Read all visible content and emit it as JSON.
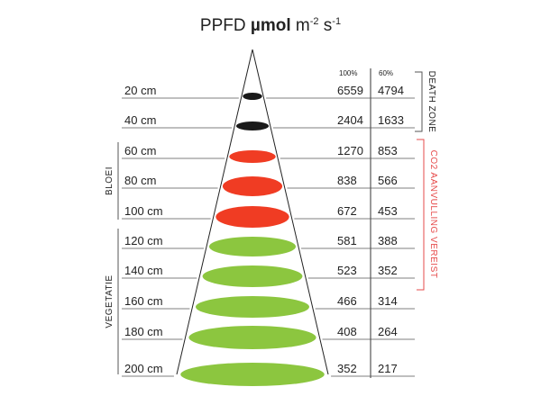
{
  "title": {
    "prefix": "PPFD ",
    "unit_bold": "µmol",
    "rest": " m",
    "exp1": "-2",
    "s": " s",
    "exp2": "-1"
  },
  "columns": [
    "100%",
    "60%"
  ],
  "rows": [
    {
      "distance": "20 cm",
      "v100": "6559",
      "v60": "4794",
      "zone": "death"
    },
    {
      "distance": "40 cm",
      "v100": "2404",
      "v60": "1633",
      "zone": "death"
    },
    {
      "distance": "60 cm",
      "v100": "1270",
      "v60": "853",
      "zone": "bloei"
    },
    {
      "distance": "80 cm",
      "v100": "838",
      "v60": "566",
      "zone": "bloei"
    },
    {
      "distance": "100 cm",
      "v100": "672",
      "v60": "453",
      "zone": "bloei"
    },
    {
      "distance": "120 cm",
      "v100": "581",
      "v60": "388",
      "zone": "vegetatie"
    },
    {
      "distance": "140 cm",
      "v100": "523",
      "v60": "352",
      "zone": "vegetatie"
    },
    {
      "distance": "160 cm",
      "v100": "466",
      "v60": "314",
      "zone": "vegetatie"
    },
    {
      "distance": "180 cm",
      "v100": "408",
      "v60": "264",
      "zone": "vegetatie"
    },
    {
      "distance": "200 cm",
      "v100": "352",
      "v60": "217",
      "zone": "vegetatie"
    }
  ],
  "labels": {
    "bloei": "BLOEI",
    "vegetatie": "VEGETATIE",
    "death_zone": "DEATH ZONE",
    "co2": "CO2 AANVULLING VEREIST"
  },
  "colors": {
    "death": "#1a1a1a",
    "bloei": "#f03c23",
    "vegetatie": "#8cc63f",
    "co2_bracket": "#e64b4b",
    "lines": "#555555"
  }
}
